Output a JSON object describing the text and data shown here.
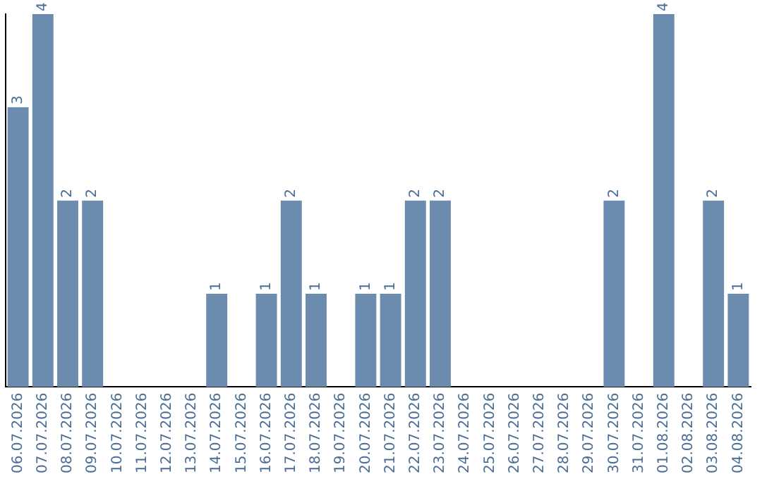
{
  "chart_data": {
    "type": "bar",
    "categories": [
      "06.07.2026",
      "07.07.2026",
      "08.07.2026",
      "09.07.2026",
      "10.07.2026",
      "11.07.2026",
      "12.07.2026",
      "13.07.2026",
      "14.07.2026",
      "15.07.2026",
      "16.07.2026",
      "17.07.2026",
      "18.07.2026",
      "19.07.2026",
      "20.07.2026",
      "21.07.2026",
      "22.07.2026",
      "23.07.2026",
      "24.07.2026",
      "25.07.2026",
      "26.07.2026",
      "27.07.2026",
      "28.07.2026",
      "29.07.2026",
      "30.07.2026",
      "31.07.2026",
      "01.08.2026",
      "02.08.2026",
      "03.08.2026",
      "04.08.2026"
    ],
    "values": [
      3,
      4,
      2,
      2,
      0,
      0,
      0,
      0,
      1,
      0,
      1,
      2,
      1,
      0,
      1,
      1,
      2,
      2,
      0,
      0,
      0,
      0,
      0,
      0,
      2,
      0,
      4,
      0,
      2,
      1
    ],
    "value_labels": [
      "3",
      "4",
      "2",
      "2",
      null,
      null,
      null,
      null,
      "1",
      null,
      "1",
      "2",
      "1",
      null,
      "1",
      "1",
      "2",
      "2",
      null,
      null,
      null,
      null,
      null,
      null,
      "2",
      null,
      "4",
      null,
      "2",
      "1"
    ],
    "color": "#6b8cae",
    "grid": false,
    "legend": false,
    "tick_labels": "x"
  }
}
